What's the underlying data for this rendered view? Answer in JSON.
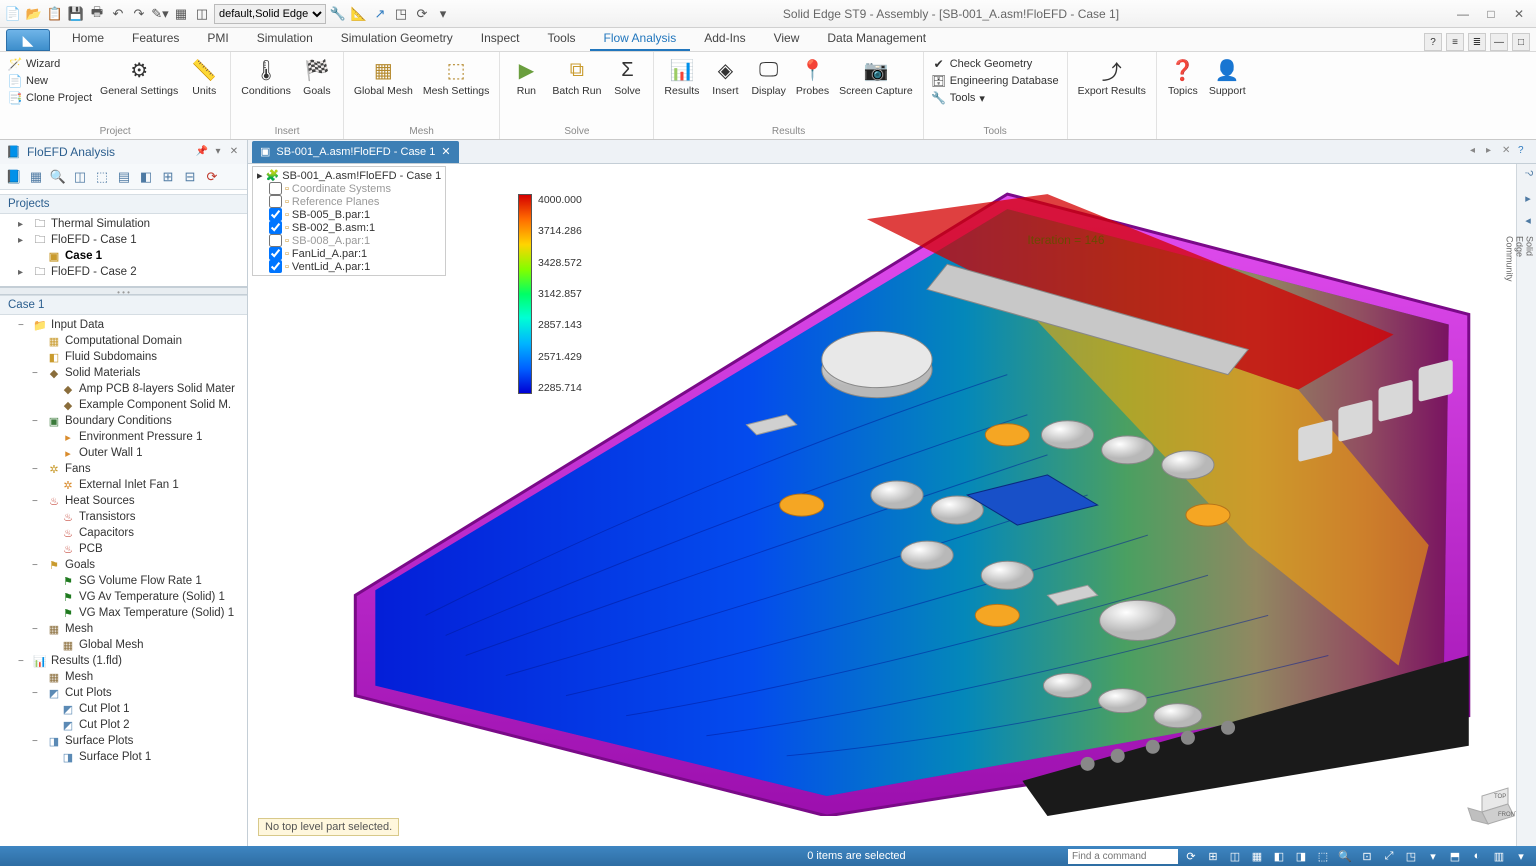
{
  "window": {
    "title": "Solid Edge ST9 - Assembly - [SB-001_A.asm!FloEFD - Case 1]",
    "qat_dropdown": "default,Solid Edge",
    "win_buttons": [
      "—",
      "□",
      "✕"
    ]
  },
  "menu": {
    "tabs": [
      "Home",
      "Features",
      "PMI",
      "Simulation",
      "Simulation Geometry",
      "Inspect",
      "Tools",
      "Flow Analysis",
      "Add-Ins",
      "View",
      "Data Management"
    ],
    "active": "Flow Analysis"
  },
  "ribbon": {
    "project": {
      "label": "Project",
      "items": [
        "Wizard",
        "New",
        "Clone Project"
      ],
      "general": "General Settings",
      "units": "Units"
    },
    "insert": {
      "label": "Insert",
      "conditions": "Conditions",
      "goals": "Goals"
    },
    "mesh": {
      "label": "Mesh",
      "global": "Global Mesh",
      "settings": "Mesh Settings"
    },
    "solve": {
      "label": "Solve",
      "run": "Run",
      "batch": "Batch Run",
      "solve": "Solve"
    },
    "results": {
      "label": "Results",
      "results": "Results",
      "insert": "Insert",
      "display": "Display",
      "probes": "Probes",
      "screen": "Screen Capture"
    },
    "tools": {
      "label": "Tools",
      "check": "Check Geometry",
      "db": "Engineering Database",
      "tools": "Tools"
    },
    "export": {
      "label": "",
      "export": "Export Results"
    },
    "help": {
      "topics": "Topics",
      "support": "Support"
    }
  },
  "sidepanel": {
    "title": "FloEFD Analysis",
    "projects_header": "Projects",
    "projects": [
      {
        "label": "Thermal Simulation"
      },
      {
        "label": "FloEFD - Case 1",
        "children": [
          {
            "label": "Case 1",
            "bold": true
          }
        ]
      },
      {
        "label": "FloEFD - Case 2"
      }
    ],
    "case_header": "Case 1",
    "tree": [
      {
        "l": "Input Data",
        "d": 0,
        "e": "−",
        "i": "📁",
        "c": "#c99b2e"
      },
      {
        "l": "Computational Domain",
        "d": 1,
        "i": "▦",
        "c": "#c99b2e"
      },
      {
        "l": "Fluid Subdomains",
        "d": 1,
        "i": "◧",
        "c": "#c99b2e"
      },
      {
        "l": "Solid Materials",
        "d": 1,
        "e": "−",
        "i": "◆",
        "c": "#8a6d3b"
      },
      {
        "l": "Amp PCB 8-layers Solid Mater",
        "d": 2,
        "i": "◆",
        "c": "#8a6d3b"
      },
      {
        "l": "Example Component Solid M.",
        "d": 2,
        "i": "◆",
        "c": "#8a6d3b"
      },
      {
        "l": "Boundary Conditions",
        "d": 1,
        "e": "−",
        "i": "▣",
        "c": "#3b7a3b"
      },
      {
        "l": "Environment Pressure 1",
        "d": 2,
        "i": "▸",
        "c": "#d98c2e"
      },
      {
        "l": "Outer Wall 1",
        "d": 2,
        "i": "▸",
        "c": "#d98c2e"
      },
      {
        "l": "Fans",
        "d": 1,
        "e": "−",
        "i": "✲",
        "c": "#c99b2e"
      },
      {
        "l": "External Inlet Fan 1",
        "d": 2,
        "i": "✲",
        "c": "#d98c2e"
      },
      {
        "l": "Heat Sources",
        "d": 1,
        "e": "−",
        "i": "♨",
        "c": "#c0392b"
      },
      {
        "l": "Transistors",
        "d": 2,
        "i": "♨",
        "c": "#c0392b"
      },
      {
        "l": "Capacitors",
        "d": 2,
        "i": "♨",
        "c": "#c0392b"
      },
      {
        "l": "PCB",
        "d": 2,
        "i": "♨",
        "c": "#c0392b"
      },
      {
        "l": "Goals",
        "d": 1,
        "e": "−",
        "i": "⚑",
        "c": "#c99b2e"
      },
      {
        "l": "SG Volume Flow Rate 1",
        "d": 2,
        "i": "⚑",
        "c": "#1f7a1f"
      },
      {
        "l": "VG Av Temperature (Solid) 1",
        "d": 2,
        "i": "⚑",
        "c": "#1f7a1f"
      },
      {
        "l": "VG Max Temperature (Solid) 1",
        "d": 2,
        "i": "⚑",
        "c": "#1f7a1f"
      },
      {
        "l": "Mesh",
        "d": 1,
        "e": "−",
        "i": "▦",
        "c": "#8a6d3b"
      },
      {
        "l": "Global Mesh",
        "d": 2,
        "i": "▦",
        "c": "#8a6d3b"
      },
      {
        "l": "Results (1.fld)",
        "d": 0,
        "e": "−",
        "i": "📊",
        "c": "#3b7a3b"
      },
      {
        "l": "Mesh",
        "d": 1,
        "i": "▦",
        "c": "#8a6d3b"
      },
      {
        "l": "Cut Plots",
        "d": 1,
        "e": "−",
        "i": "◩",
        "c": "#5b8ab5"
      },
      {
        "l": "Cut Plot 1",
        "d": 2,
        "i": "◩",
        "c": "#5b8ab5"
      },
      {
        "l": "Cut Plot 2",
        "d": 2,
        "i": "◩",
        "c": "#5b8ab5"
      },
      {
        "l": "Surface Plots",
        "d": 1,
        "e": "−",
        "i": "◨",
        "c": "#5b8ab5"
      },
      {
        "l": "Surface Plot 1",
        "d": 2,
        "i": "◨",
        "c": "#5b8ab5"
      }
    ]
  },
  "doc_tab": "SB-001_A.asm!FloEFD - Case 1",
  "model_tree": {
    "root": "SB-001_A.asm!FloEFD - Case 1",
    "rows": [
      {
        "chk": false,
        "label": "Coordinate Systems",
        "grey": true,
        "d": 1
      },
      {
        "chk": false,
        "label": "Reference Planes",
        "grey": true,
        "d": 1
      },
      {
        "chk": true,
        "label": "SB-005_B.par:1",
        "d": 1
      },
      {
        "chk": true,
        "label": "SB-002_B.asm:1",
        "d": 1
      },
      {
        "chk": false,
        "label": "SB-008_A.par:1",
        "grey": true,
        "d": 1
      },
      {
        "chk": true,
        "label": "FanLid_A.par:1",
        "d": 1
      },
      {
        "chk": true,
        "label": "VentLid_A.par:1",
        "d": 1
      }
    ]
  },
  "colorbar": {
    "ticks": [
      "4000.000",
      "3714.286",
      "3428.572",
      "3142.857",
      "2857.143",
      "2571.429",
      "2285.714"
    ]
  },
  "hint": "No top level part selected.",
  "annotation": "Iteration = 146",
  "status": {
    "msg": "0 items are selected",
    "cmd_placeholder": "Find a command"
  },
  "colors": {
    "magenta": "#c814d8",
    "magenta_dark": "#8e0fa0",
    "board": "#0a2bd8",
    "blue_accent": "#2e7bc0"
  }
}
